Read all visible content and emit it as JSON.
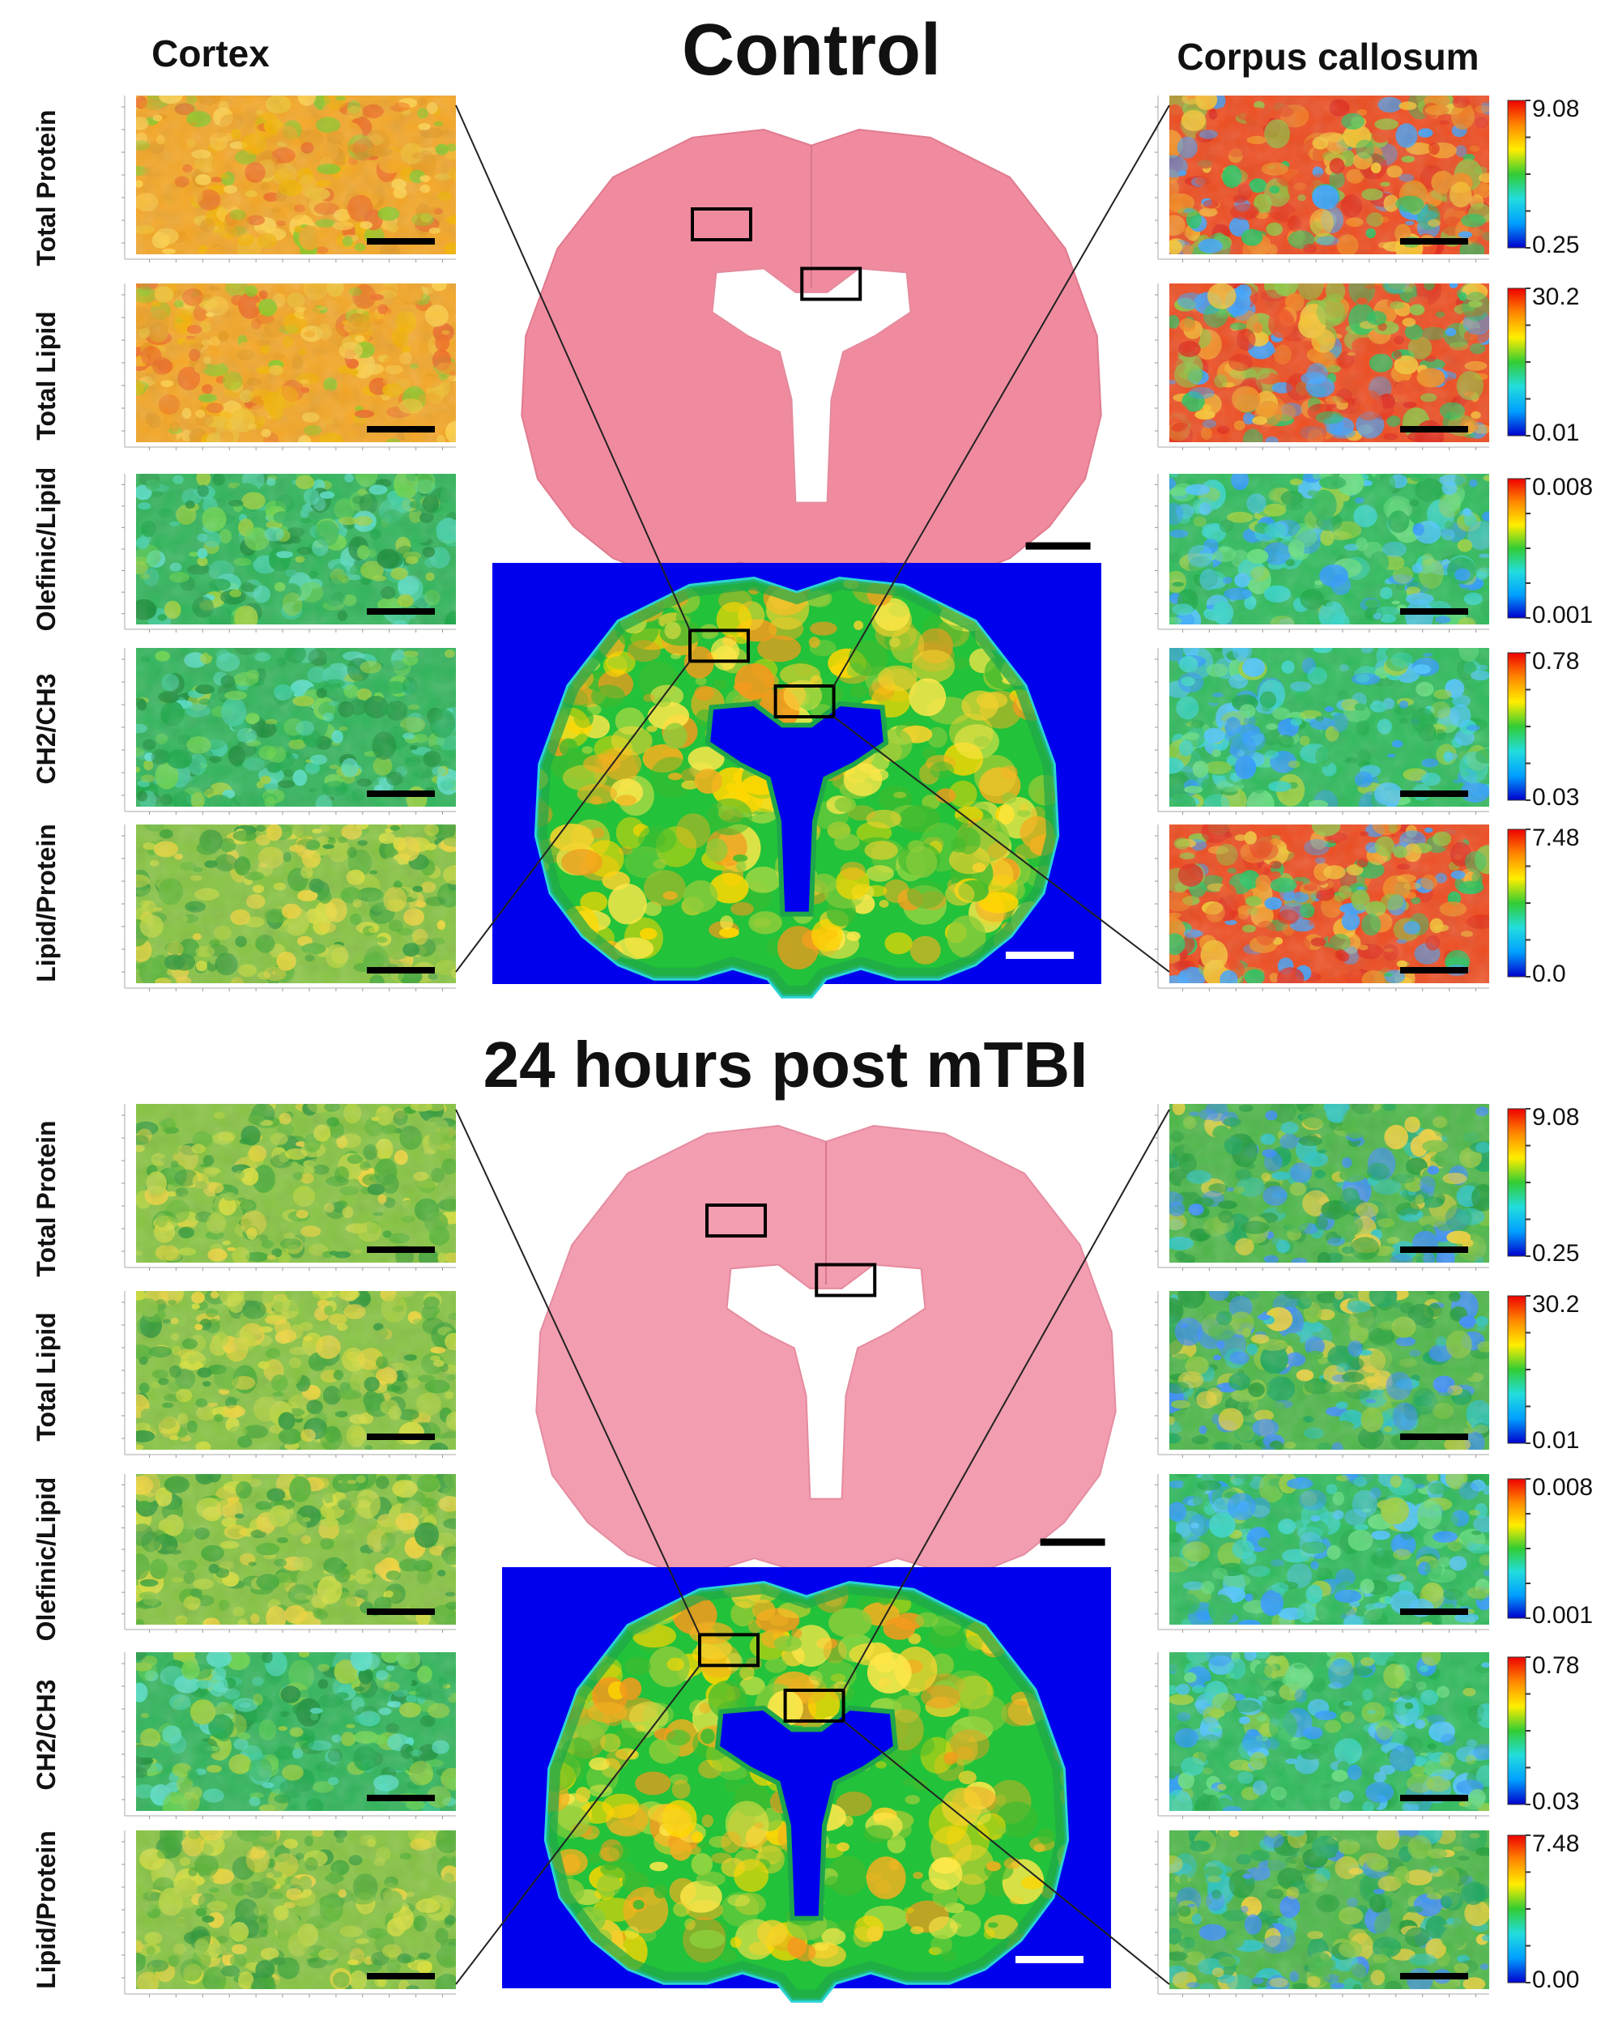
{
  "figure": {
    "column_titles": {
      "left": "Cortex",
      "right": "Corpus callosum"
    },
    "sections": [
      {
        "title": "Control",
        "brain_fill": "#f08b9f",
        "brain_stroke": "#e07a8e"
      },
      {
        "title": "24 hours post  mTBI",
        "brain_fill": "#f29db0",
        "brain_stroke": "#e48ca0"
      }
    ],
    "row_labels": [
      "Total Protein",
      "Total Lipid",
      "Olefinic/Lipid",
      "CH2/CH3",
      "Lipid/Protein"
    ],
    "colorbar_ranges": [
      {
        "max": "9.08",
        "min": "0.25"
      },
      {
        "max": "30.2",
        "min": "0.01"
      },
      {
        "max": "0.008",
        "min": "0.001"
      },
      {
        "max": "0.78",
        "min": "0.03"
      },
      {
        "max": "7.48",
        "min": "0.0"
      },
      {
        "max": "9.08",
        "min": "0.25"
      },
      {
        "max": "30.2",
        "min": "0.01"
      },
      {
        "max": "0.008",
        "min": "0.001"
      },
      {
        "max": "0.78",
        "min": "0.03"
      },
      {
        "max": "7.48",
        "min": "0.00"
      }
    ],
    "colorscale": [
      "#0000cc",
      "#00a0ff",
      "#22dddd",
      "#33cc33",
      "#ffee00",
      "#ff8800",
      "#ee0000"
    ],
    "ir_background": "#0000ee",
    "tile_palettes": {
      "ctrl_cortex": [
        "#f5a623",
        "#f1c232",
        "#e69a1d",
        "#ffd24a",
        "#f4b400",
        "#8ac926",
        "#ef6a21"
      ],
      "ctrl_cc": [
        "#ef4b1e",
        "#f28b21",
        "#f7c531",
        "#8cc63f",
        "#22c55e",
        "#3ba3ff",
        "#e0291a"
      ],
      "ctrl_cortex_ol": [
        "#2fb55a",
        "#41d0a4",
        "#9ad13b",
        "#19a847",
        "#58e0c8",
        "#1a8f3a",
        "#6dd64d"
      ],
      "ctrl_cc_ol": [
        "#2dbb5b",
        "#4ec6ff",
        "#38d6c9",
        "#9cd23d",
        "#1daa47",
        "#2f9bff",
        "#66e07e"
      ],
      "mtbi_cortex": [
        "#86c440",
        "#b9d63f",
        "#58b535",
        "#d8e03a",
        "#3ea832",
        "#f0d63a",
        "#2f9a37"
      ],
      "mtbi_cc": [
        "#4cb847",
        "#1aa75b",
        "#3c8cff",
        "#88c83f",
        "#f0d23a",
        "#2bc6c6",
        "#1f9c3a"
      ]
    }
  }
}
